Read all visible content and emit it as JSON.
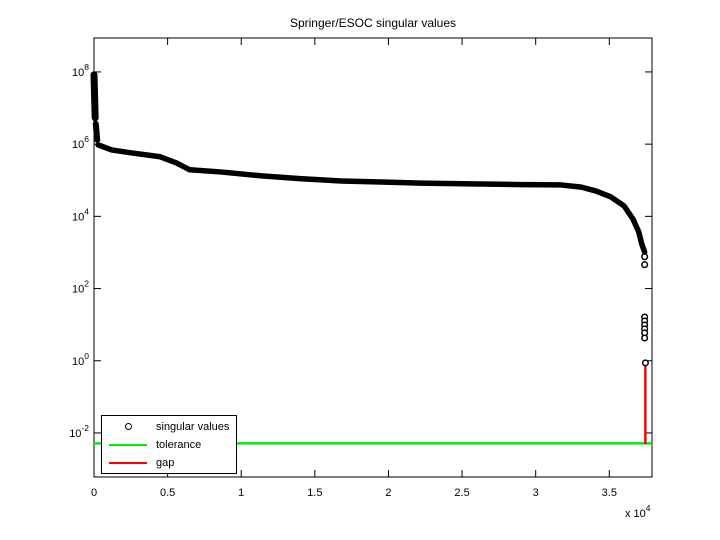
{
  "figure": {
    "background": "#ffffff"
  },
  "legend": {
    "items": [
      {
        "label": "singular values",
        "marker": "circle",
        "color": "#000000"
      },
      {
        "label": "tolerance",
        "marker": "line",
        "color": "#00ee00"
      },
      {
        "label": "gap",
        "marker": "line",
        "color": "#ff0000"
      }
    ]
  },
  "chart_data": {
    "type": "scatter",
    "yscale": "log10",
    "title": "Springer/ESOC singular values",
    "grid": false,
    "legend_position": "southwest-inside",
    "xlim": [
      0,
      3.79
    ],
    "ylim_log10": [
      -3.22,
      8.94
    ],
    "x_ticks": [
      "0",
      "0.5",
      "1",
      "1.5",
      "2",
      "2.5",
      "3",
      "3.5"
    ],
    "x_tick_values": [
      0,
      0.5,
      1,
      1.5,
      2,
      2.5,
      3,
      3.5
    ],
    "x_unit": {
      "text": "x 10",
      "exponent": "4"
    },
    "y_tick_base": "10",
    "y_tick_exponents": [
      "8",
      "6",
      "4",
      "2",
      "0",
      "-2"
    ],
    "y_tick_values_log10": [
      8,
      6,
      4,
      2,
      0,
      -2
    ],
    "series": [
      {
        "name": "singular values",
        "color": "#000000",
        "marker": "o",
        "dense_segments": [
          [
            [
              0.0,
              7.92
            ],
            [
              0.008,
              6.73
            ]
          ],
          [
            [
              0.012,
              6.56
            ],
            [
              0.022,
              6.12
            ]
          ],
          [
            [
              0.028,
              5.98
            ],
            [
              0.12,
              5.84
            ],
            [
              0.25,
              5.76
            ],
            [
              0.45,
              5.65
            ],
            [
              0.56,
              5.48
            ],
            [
              0.65,
              5.29
            ],
            [
              0.86,
              5.23
            ],
            [
              1.14,
              5.12
            ],
            [
              1.41,
              5.04
            ],
            [
              1.68,
              4.98
            ],
            [
              1.95,
              4.95
            ],
            [
              2.22,
              4.92
            ],
            [
              2.56,
              4.9
            ],
            [
              2.9,
              4.88
            ],
            [
              3.17,
              4.87
            ],
            [
              3.31,
              4.81
            ],
            [
              3.41,
              4.7
            ],
            [
              3.51,
              4.54
            ],
            [
              3.6,
              4.29
            ],
            [
              3.66,
              3.93
            ],
            [
              3.7,
              3.57
            ],
            [
              3.72,
              3.24
            ],
            [
              3.74,
              3.01
            ]
          ]
        ],
        "isolated_points": [
          [
            3.74,
            2.88
          ],
          [
            3.74,
            2.66
          ],
          [
            3.74,
            1.21
          ],
          [
            3.74,
            1.1
          ],
          [
            3.74,
            0.99
          ],
          [
            3.74,
            0.88
          ],
          [
            3.74,
            0.77
          ],
          [
            3.74,
            0.63
          ],
          [
            3.745,
            -0.06
          ]
        ]
      },
      {
        "name": "tolerance",
        "type": "hline",
        "color": "#00ee00",
        "value_log10": -2.29
      },
      {
        "name": "gap",
        "type": "vline",
        "color": "#ff0000",
        "x": 3.745,
        "from_log10": -0.06,
        "to_log10": -2.31
      }
    ]
  }
}
